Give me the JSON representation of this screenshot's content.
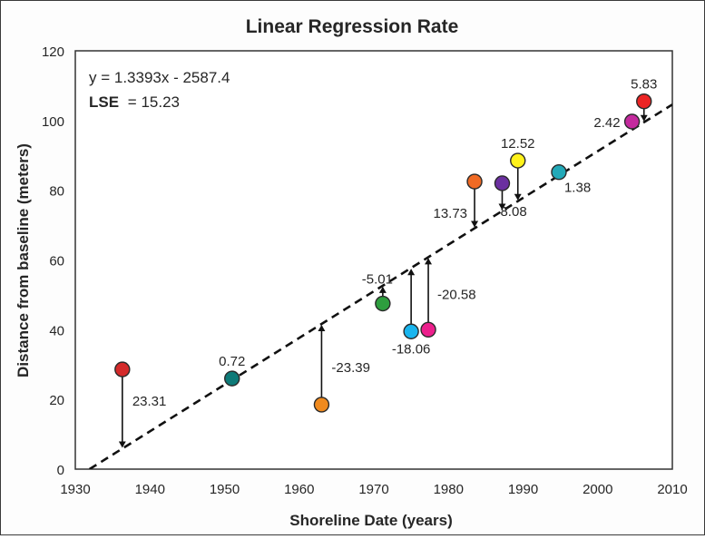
{
  "chart_data": {
    "type": "scatter",
    "title": "Linear Regression Rate",
    "xlabel": "Shoreline Date (years)",
    "ylabel": "Distance from baseline (meters)",
    "xlim": [
      1930,
      2010
    ],
    "ylim": [
      0,
      120
    ],
    "xticks": [
      "1930",
      "1940",
      "1950",
      "1960",
      "1970",
      "1980",
      "1990",
      "2000",
      "2010"
    ],
    "yticks": [
      "0",
      "20",
      "40",
      "60",
      "80",
      "100",
      "120"
    ],
    "grid": false,
    "annotation": {
      "equation": "y = 1.3393x - 2587.4",
      "lse_label": "LSE",
      "lse_value": "= 15.23"
    },
    "regression": {
      "slope": 1.3393,
      "intercept": -2587.4,
      "style": "dashed",
      "color": "#000000"
    },
    "points": [
      {
        "x": 1936.3,
        "y": 28.6,
        "color": "#d42a2a",
        "residual": "23.31",
        "label_side": "right"
      },
      {
        "x": 1951.0,
        "y": 26.0,
        "color": "#0e7a78",
        "residual": "0.72",
        "label_side": "top"
      },
      {
        "x": 1963.0,
        "y": 18.5,
        "color": "#f08a1e",
        "residual": "-23.39",
        "label_side": "right"
      },
      {
        "x": 1971.2,
        "y": 47.5,
        "color": "#2e9e3e",
        "residual": "-5.01",
        "label_side": "top-left"
      },
      {
        "x": 1975.0,
        "y": 39.5,
        "color": "#19b5ee",
        "residual": "-18.06",
        "label_side": "bottom"
      },
      {
        "x": 1977.3,
        "y": 40.0,
        "color": "#ec1f8c",
        "residual": "-20.58",
        "label_side": "right"
      },
      {
        "x": 1983.5,
        "y": 82.5,
        "color": "#f06a24",
        "residual": "13.73",
        "label_side": "left"
      },
      {
        "x": 1987.2,
        "y": 82.0,
        "color": "#6b2fa0",
        "residual": "8.08",
        "label_side": "bottom-right"
      },
      {
        "x": 1989.3,
        "y": 88.5,
        "color": "#fff21a",
        "residual": "12.52",
        "label_side": "top"
      },
      {
        "x": 1994.8,
        "y": 85.2,
        "color": "#22a9b8",
        "residual": "1.38",
        "label_side": "bottom-right"
      },
      {
        "x": 2004.6,
        "y": 99.7,
        "color": "#c42a9e",
        "residual": "2.42",
        "label_side": "left"
      },
      {
        "x": 2006.2,
        "y": 105.5,
        "color": "#ec2424",
        "residual": "5.83",
        "label_side": "top"
      }
    ]
  }
}
